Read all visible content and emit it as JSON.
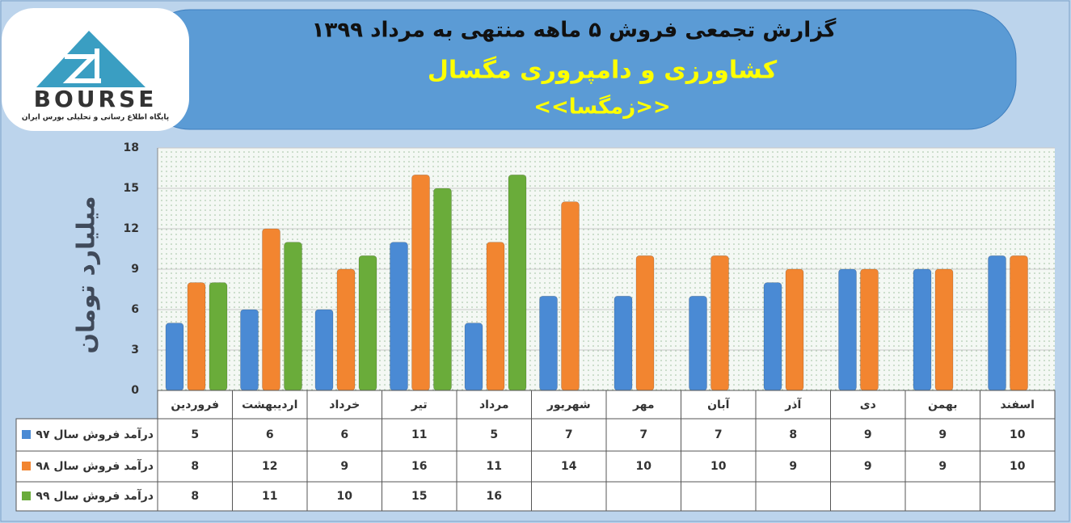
{
  "logo": {
    "text": "BOURSE",
    "tagline": "پایگاه اطلاع رسانی و تحلیلی بورس ایران"
  },
  "chart_data": {
    "type": "bar",
    "title": "گزارش تجمعی فروش  ۵ ماهه منتهی به مرداد ۱۳۹۹",
    "subtitle": "کشاورزی و دامپروری مگسال",
    "symbol": "<<زمگسا>>",
    "y_label": "میلیارد تومان",
    "categories": [
      "فروردین",
      "اردیبهشت",
      "خرداد",
      "تیر",
      "مرداد",
      "شهریور",
      "مهر",
      "آبان",
      "آذر",
      "دی",
      "بهمن",
      "اسفند"
    ],
    "series": [
      {
        "name": "درآمد فروش سال ۹۷",
        "color": "#4a8ad4",
        "values": [
          5,
          6,
          6,
          11,
          5,
          7,
          7,
          7,
          8,
          9,
          9,
          10
        ]
      },
      {
        "name": "درآمد فروش سال ۹۸",
        "color": "#f28530",
        "values": [
          8,
          12,
          9,
          16,
          11,
          14,
          10,
          10,
          9,
          9,
          9,
          10
        ]
      },
      {
        "name": "درآمد فروش سال ۹۹",
        "color": "#6aac3a",
        "values": [
          8,
          11,
          10,
          15,
          16,
          null,
          null,
          null,
          null,
          null,
          null,
          null
        ]
      }
    ],
    "ylim": [
      0,
      18
    ],
    "yticks": [
      0,
      3,
      6,
      9,
      12,
      15,
      18
    ],
    "grid": true
  }
}
